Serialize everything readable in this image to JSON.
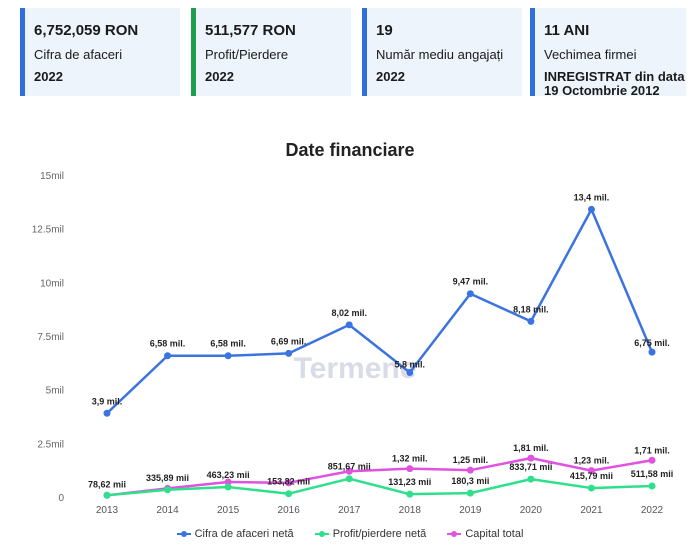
{
  "cards": [
    {
      "value": "6,752,059 RON",
      "label": "Cifra de afaceri",
      "year": "2022",
      "accent": "#2f6fdb"
    },
    {
      "value": "511,577 RON",
      "label": "Profit/Pierdere",
      "year": "2022",
      "accent": "#1e9e4a"
    },
    {
      "value": "19",
      "label": "Număr mediu angajați",
      "year": "2022",
      "accent": "#2f6fdb"
    },
    {
      "value": "11 ANI",
      "label": "Vechimea firmei",
      "year": "INREGISTRAT din data 19 Octombrie 2012",
      "accent": "#2f6fdb"
    }
  ],
  "chart_data": {
    "type": "line",
    "title": "Date financiare",
    "x": [
      "2013",
      "2014",
      "2015",
      "2016",
      "2017",
      "2018",
      "2019",
      "2020",
      "2021",
      "2022"
    ],
    "ylim": [
      0,
      15000000
    ],
    "yticks": [
      0,
      2500000,
      5000000,
      7500000,
      10000000,
      12500000,
      15000000
    ],
    "ytick_labels": [
      "0",
      "2.5mil",
      "5mil",
      "7.5mil",
      "10mil",
      "12.5mil",
      "15mil"
    ],
    "grid": false,
    "legend_position": "bottom",
    "watermark": "Termene",
    "series": [
      {
        "name": "Cifra de afaceri netă",
        "color": "#3b73e0",
        "values": [
          3900000,
          6580000,
          6580000,
          6690000,
          8020000,
          5800000,
          9470000,
          8180000,
          13400000,
          6750000
        ],
        "labels": [
          "3,9 mil.",
          "6,58 mil.",
          "6,58 mil.",
          "6,69 mil.",
          "8,02 mil.",
          "5,8 mil.",
          "9,47 mil.",
          "8,18 mil.",
          "13,4 mil.",
          "6,75 mil."
        ]
      },
      {
        "name": "Profit/pierdere netă",
        "color": "#2ee08c",
        "values": [
          78620,
          335890,
          463230,
          153820,
          851670,
          131230,
          180300,
          833710,
          415790,
          511580
        ],
        "labels": [
          "78,62 mii",
          "335,89 mii",
          "463,23 mii",
          "153,82 mii",
          "851,67 mii",
          "131,23 mii",
          "180,3 mii",
          "833,71 mii",
          "415,79 mii",
          "511,58 mii"
        ]
      },
      {
        "name": "Capital total",
        "color": "#e052e0",
        "values": [
          78620,
          400000,
          700000,
          660000,
          1200000,
          1320000,
          1250000,
          1810000,
          1230000,
          1710000
        ],
        "labels": [
          "",
          "",
          "",
          "",
          "",
          "1,32 mil.",
          "1,25 mil.",
          "1,81 mil.",
          "1,23 mil.",
          "1,71 mil."
        ]
      }
    ]
  }
}
